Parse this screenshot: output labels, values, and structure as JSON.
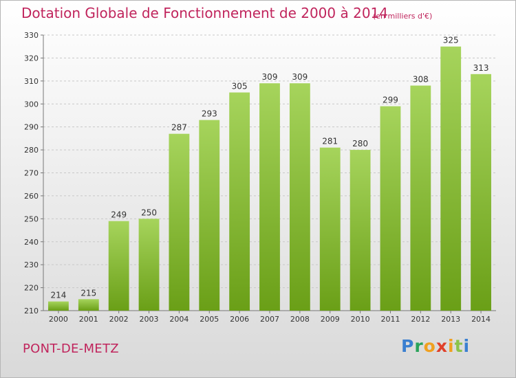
{
  "title": "Dotation Globale de Fonctionnement de 2000 à 2014",
  "unit_note": "(en milliers d'€)",
  "city": "PONT-DE-METZ",
  "logo_text": "Proxiti",
  "colors": {
    "title": "#c0245c",
    "bar_light": "#a6d45c",
    "bar_dark": "#6a9f17",
    "grid": "#c8c8c8"
  },
  "chart_data": {
    "type": "bar",
    "title": "Dotation Globale de Fonctionnement de 2000 à 2014",
    "subtitle": "(en milliers d'€)",
    "categories": [
      "2000",
      "2001",
      "2002",
      "2003",
      "2004",
      "2005",
      "2006",
      "2007",
      "2008",
      "2009",
      "2010",
      "2011",
      "2012",
      "2013",
      "2014"
    ],
    "values": [
      214,
      215,
      249,
      250,
      287,
      293,
      305,
      309,
      309,
      281,
      280,
      299,
      308,
      325,
      313
    ],
    "ylim": [
      210,
      330
    ],
    "yticks": [
      210,
      220,
      230,
      240,
      250,
      260,
      270,
      280,
      290,
      300,
      310,
      320,
      330
    ],
    "grid": true,
    "data_labels": true
  }
}
